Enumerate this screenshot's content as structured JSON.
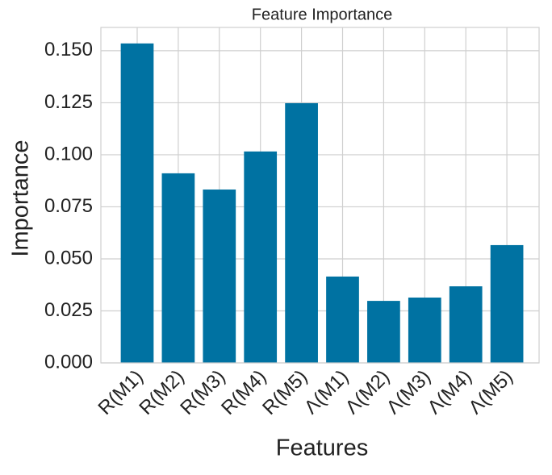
{
  "chart_data": {
    "type": "bar",
    "title": "Feature Importance",
    "x_label": "Features",
    "y_label": "Importance",
    "categories": [
      "R(M1)",
      "R(M2)",
      "R(M3)",
      "R(M4)",
      "R(M5)",
      "Λ(M1)",
      "Λ(M2)",
      "Λ(M3)",
      "Λ(M4)",
      "Λ(M5)"
    ],
    "values": [
      0.1535,
      0.0911,
      0.0833,
      0.1016,
      0.1248,
      0.0415,
      0.0298,
      0.0314,
      0.0368,
      0.0566
    ],
    "color": "#0072a2",
    "ylim": [
      0,
      0.1612
    ],
    "yticks": [
      {
        "value": 0,
        "label": "0.000"
      },
      {
        "value": 0.025,
        "label": "0.025"
      },
      {
        "value": 0.05,
        "label": "0.050"
      },
      {
        "value": 0.075,
        "label": "0.075"
      },
      {
        "value": 0.1,
        "label": "0.100"
      },
      {
        "value": 0.125,
        "label": "0.125"
      },
      {
        "value": 0.15,
        "label": "0.150"
      }
    ],
    "grid": true
  }
}
